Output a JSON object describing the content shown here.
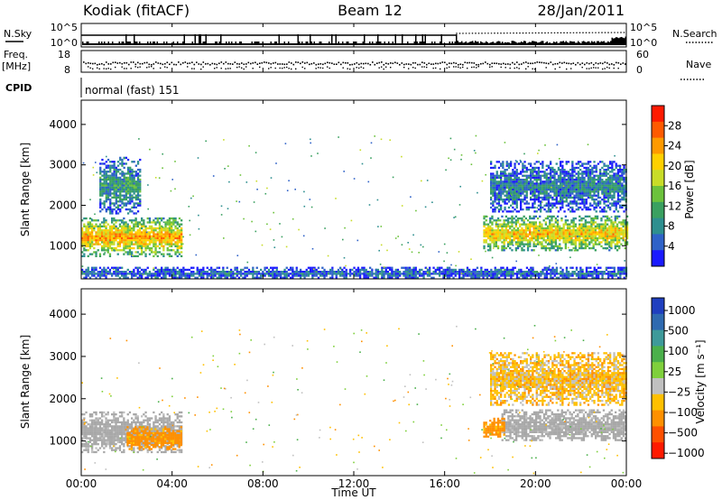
{
  "header": {
    "station": "Kodiak (fitACF)",
    "beam": "Beam 12",
    "date": "28/Jan/2011"
  },
  "status_panels": {
    "nsky_label": "N.Sky",
    "nsky_ticks": [
      "10^5",
      "10^0"
    ],
    "nsearch_label": "N.Search",
    "nsearch_ticks": [
      "10^5",
      "10^0"
    ],
    "freq_label": "Freq.",
    "freq_unit": "[MHz]",
    "freq_ticks": [
      "18",
      "8"
    ],
    "nave_label": "Nave",
    "nave_ticks": [
      "60",
      "0"
    ],
    "cpid_label": "CPID",
    "cpid_text": "normal (fast) 151"
  },
  "colors": {
    "power": [
      "#1a1aff",
      "#2f62c8",
      "#2e8f8f",
      "#3aa060",
      "#6cc23c",
      "#c8dc28",
      "#ffd000",
      "#ff9a00",
      "#ff5a00",
      "#ff1a00"
    ],
    "velocity": [
      "#1f3fbf",
      "#2f6ab0",
      "#3e9a9a",
      "#4bb04b",
      "#7fd03c",
      "#c0c0c0",
      "#ffc000",
      "#ff9000",
      "#ff5000",
      "#ff1a00"
    ],
    "ground": "#a8a8a8"
  },
  "chart_data": [
    {
      "type": "heatmap",
      "quantity": "power",
      "xlabel": "",
      "ylabel": "Slant Range [km]",
      "x_range": [
        0,
        24
      ],
      "y_range": [
        180,
        4600
      ],
      "y_ticks": [
        1000,
        2000,
        3000,
        4000
      ],
      "colorbar": {
        "label": "Power [dB]",
        "ticks": [
          "4",
          "8",
          "12",
          "16",
          "20",
          "24",
          "28"
        ],
        "range": [
          0,
          32
        ]
      },
      "regions": [
        {
          "t_start": 0.0,
          "t_end": 4.4,
          "r_low": 750,
          "r_high": 1700,
          "level": 24,
          "name": "morning-main"
        },
        {
          "t_start": 0.8,
          "t_end": 2.6,
          "r_low": 1800,
          "r_high": 3200,
          "level": 10,
          "name": "morning-upper"
        },
        {
          "t_start": 17.7,
          "t_end": 24.0,
          "r_low": 900,
          "r_high": 1750,
          "level": 22,
          "name": "evening-main"
        },
        {
          "t_start": 18.0,
          "t_end": 24.0,
          "r_low": 1850,
          "r_high": 3100,
          "level": 8,
          "name": "evening-upper"
        },
        {
          "t_start": 0.0,
          "t_end": 24.0,
          "r_low": 200,
          "r_high": 480,
          "level": 6,
          "name": "near-range"
        }
      ]
    },
    {
      "type": "heatmap",
      "quantity": "velocity",
      "xlabel": "Time UT",
      "ylabel": "Slant Range [km]",
      "x_range": [
        0,
        24
      ],
      "y_range": [
        180,
        4600
      ],
      "y_ticks": [
        1000,
        2000,
        3000,
        4000
      ],
      "x_ticks": [
        "00:00",
        "04:00",
        "08:00",
        "12:00",
        "16:00",
        "20:00",
        "00:00"
      ],
      "colorbar": {
        "label": "Velocity [m s⁻¹]",
        "ticks": [
          "1000",
          "500",
          "100",
          "25",
          "−25",
          "−100",
          "−500",
          "−1000"
        ]
      },
      "regions": [
        {
          "t_start": 0.0,
          "t_end": 4.4,
          "r_low": 750,
          "r_high": 1700,
          "level": 0,
          "name": "morning-ground"
        },
        {
          "t_start": 2.0,
          "t_end": 4.4,
          "r_low": 800,
          "r_high": 1350,
          "level": -150,
          "name": "morning-negative"
        },
        {
          "t_start": 18.5,
          "t_end": 24.0,
          "r_low": 1000,
          "r_high": 1750,
          "level": 0,
          "name": "evening-ground"
        },
        {
          "t_start": 17.7,
          "t_end": 18.6,
          "r_low": 1100,
          "r_high": 1550,
          "level": -150,
          "name": "evening-negative"
        },
        {
          "t_start": 18.0,
          "t_end": 24.0,
          "r_low": 1850,
          "r_high": 3100,
          "level": -60,
          "name": "evening-upper"
        }
      ]
    }
  ]
}
